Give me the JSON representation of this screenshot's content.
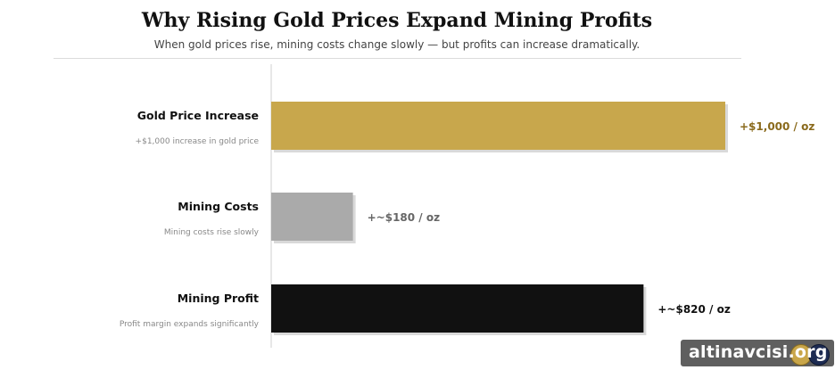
{
  "header": {
    "title": "Why Rising Gold Prices Expand Mining Profits",
    "subtitle": "When gold prices rise, mining costs change slowly — but profits can increase dramatically."
  },
  "chart_data": {
    "type": "bar",
    "orientation": "horizontal",
    "categories": [
      "Gold Price Increase",
      "Mining Costs",
      "Mining Profit"
    ],
    "descriptions": [
      "+$1,000 increase in gold price",
      "Mining costs rise slowly",
      "Profit margin expands significantly"
    ],
    "values": [
      1000,
      180,
      820
    ],
    "value_labels": [
      "+$1,000 / oz",
      "+~$180 / oz",
      "+~$820 / oz"
    ],
    "colors": [
      "#c8a74c",
      "#aaaaaa",
      "#111111"
    ],
    "label_colors": [
      "#8a6a1c",
      "#666666",
      "#111111"
    ],
    "xlim": [
      0,
      1000
    ],
    "grid": false
  },
  "watermark": {
    "text": "altinavcisi.org"
  }
}
